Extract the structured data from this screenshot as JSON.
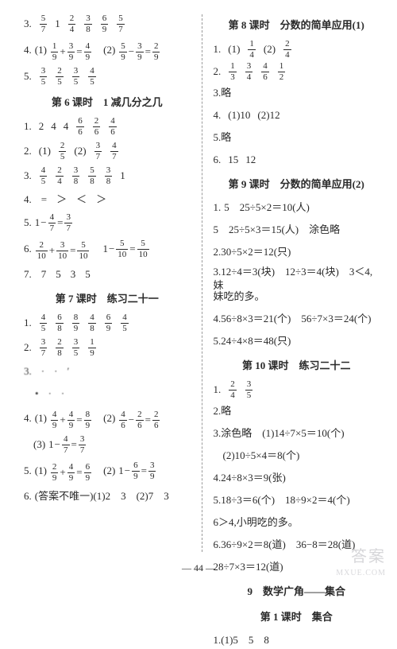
{
  "page_number": "44",
  "watermark": "答案",
  "watermark_sub": "MXUE.COM",
  "left": {
    "l3_prefix": "3.",
    "l3_items": [
      [
        "5",
        "7"
      ],
      "1",
      [
        "2",
        "4"
      ],
      [
        "3",
        "8"
      ],
      [
        "6",
        "9"
      ],
      [
        "5",
        "7"
      ]
    ],
    "l4_prefix": "4.",
    "l4a_label": "(1)",
    "l4a_eq": [
      [
        "1",
        "9"
      ],
      "+",
      [
        "3",
        "9"
      ],
      "=",
      [
        "4",
        "9"
      ]
    ],
    "l4b_label": "(2)",
    "l4b_eq": [
      [
        "5",
        "9"
      ],
      "−",
      [
        "3",
        "9"
      ],
      "=",
      [
        "2",
        "9"
      ]
    ],
    "l5_prefix": "5.",
    "l5_items": [
      [
        "3",
        "5"
      ],
      [
        "2",
        "5"
      ],
      [
        "3",
        "5"
      ],
      [
        "4",
        "5"
      ]
    ],
    "sec6": "第 6 课时　1 减几分之几",
    "s6_1_prefix": "1.",
    "s6_1_items": [
      "2",
      "4",
      "4",
      [
        "6",
        "6"
      ],
      [
        "2",
        "6"
      ],
      [
        "4",
        "6"
      ]
    ],
    "s6_2_prefix": "2.",
    "s6_2a_label": "(1)",
    "s6_2a": [
      "2",
      "5"
    ],
    "s6_2b_label": "(2)",
    "s6_2b1": [
      "3",
      "7"
    ],
    "s6_2b2": [
      "4",
      "7"
    ],
    "s6_3_prefix": "3.",
    "s6_3_items": [
      [
        "4",
        "5"
      ],
      [
        "2",
        "4"
      ],
      [
        "3",
        "8"
      ],
      [
        "5",
        "8"
      ],
      [
        "3",
        "8"
      ],
      "1"
    ],
    "s6_4_prefix": "4.",
    "s6_4_items": [
      "=",
      "＞",
      "＜",
      "＞"
    ],
    "s6_5_prefix": "5.",
    "s6_5_eq": [
      "1",
      "−",
      [
        "4",
        "7"
      ],
      "=",
      [
        "3",
        "7"
      ]
    ],
    "s6_6_prefix": "6.",
    "s6_6a": [
      [
        "2",
        "10"
      ],
      "+",
      [
        "3",
        "10"
      ],
      "=",
      [
        "5",
        "10"
      ]
    ],
    "s6_6b": [
      "1",
      "−",
      [
        "5",
        "10"
      ],
      "=",
      [
        "5",
        "10"
      ]
    ],
    "s6_7_prefix": "7.",
    "s6_7_items": [
      "7",
      "5",
      "3",
      "5"
    ],
    "sec7": "第 7 课时　练习二十一",
    "s7_1_prefix": "1.",
    "s7_1_items": [
      [
        "4",
        "5"
      ],
      [
        "6",
        "8"
      ],
      [
        "8",
        "9"
      ],
      [
        "4",
        "8"
      ],
      [
        "6",
        "9"
      ],
      [
        "4",
        "5"
      ]
    ],
    "s7_2_prefix": "2.",
    "s7_2_items": [
      [
        "3",
        "7"
      ],
      [
        "2",
        "8"
      ],
      [
        "3",
        "5"
      ],
      [
        "1",
        "9"
      ]
    ],
    "s7_3a_prefix": "3.",
    "s7_3a_items": [
      "·",
      "·",
      "′"
    ],
    "s7_3b_items": [
      "•",
      "·",
      "·"
    ],
    "s7_4_prefix": "4.",
    "s7_4a_label": "(1)",
    "s7_4a": [
      [
        "4",
        "9"
      ],
      "+",
      [
        "4",
        "9"
      ],
      "=",
      [
        "8",
        "9"
      ]
    ],
    "s7_4b_label": "(2)",
    "s7_4b": [
      [
        "4",
        "6"
      ],
      "−",
      [
        "2",
        "6"
      ],
      "=",
      [
        "2",
        "6"
      ]
    ],
    "s7_4c_label": "(3)",
    "s7_4c": [
      "1",
      "−",
      [
        "4",
        "7"
      ],
      "=",
      [
        "3",
        "7"
      ]
    ],
    "s7_5_prefix": "5.",
    "s7_5a_label": "(1)",
    "s7_5a": [
      [
        "2",
        "9"
      ],
      "+",
      [
        "4",
        "9"
      ],
      "=",
      [
        "6",
        "9"
      ]
    ],
    "s7_5b_label": "(2)",
    "s7_5b": [
      "1",
      "−",
      [
        "6",
        "9"
      ],
      "=",
      [
        "3",
        "9"
      ]
    ],
    "s7_6_prefix": "6.",
    "s7_6_text": "(答案不唯一)(1)2　3　(2)7　3"
  },
  "right": {
    "sec8": "第 8 课时　分数的简单应用(1)",
    "s8_1_prefix": "1.",
    "s8_1a_label": "(1)",
    "s8_1a": [
      "1",
      "4"
    ],
    "s8_1b_label": "(2)",
    "s8_1b": [
      "2",
      "4"
    ],
    "s8_2_prefix": "2.",
    "s8_2_items": [
      [
        "1",
        "3"
      ],
      [
        "3",
        "4"
      ],
      [
        "4",
        "6"
      ],
      [
        "1",
        "2"
      ]
    ],
    "s8_3": "3.略",
    "s8_4_prefix": "4.",
    "s8_4a": "(1)10",
    "s8_4b": "(2)12",
    "s8_5": "5.略",
    "s8_6_prefix": "6.",
    "s8_6a": "15",
    "s8_6b": "12",
    "sec9": "第 9 课时　分数的简单应用(2)",
    "s9_1_prefix": "1.",
    "s9_1a": "5　25÷5×2＝10(人)",
    "s9_1b": "5　25÷5×3＝15(人)　涂色略",
    "s9_2": "2.30÷5×2＝12(只)",
    "s9_3a": "3.12÷4＝3(块)　12÷3＝4(块)　3＜4,妹",
    "s9_3b": "妹吃的多。",
    "s9_4": "4.56÷8×3＝21(个)　56÷7×3＝24(个)",
    "s9_5": "5.24÷4×8＝48(只)",
    "sec10": "第 10 课时　练习二十二",
    "s10_1_prefix": "1.",
    "s10_1_items": [
      [
        "2",
        "4"
      ],
      [
        "3",
        "5"
      ]
    ],
    "s10_2": "2.略",
    "s10_3a": "3.涂色略　(1)14÷7×5＝10(个)",
    "s10_3b": "(2)10÷5×4＝8(个)",
    "s10_4": "4.24÷8×3＝9(张)",
    "s10_5a": "5.18÷3＝6(个)　18÷9×2＝4(个)",
    "s10_5b": "6＞4,小明吃的多。",
    "s10_6a": "6.36÷9×2＝8(道)　36−8＝28(道)",
    "s10_6b": "28÷7×3＝12(道)",
    "sec_n9": "9　数学广角——集合",
    "sec_n9_1": "第 1 课时　集合",
    "n9_1": "1.(1)5　5　8"
  }
}
